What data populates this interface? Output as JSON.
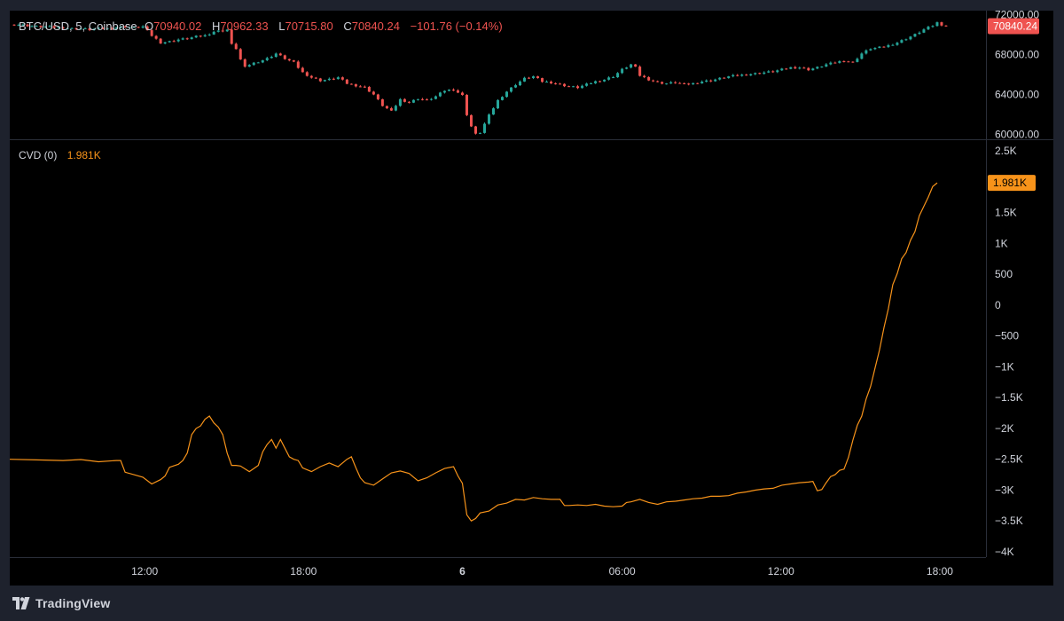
{
  "header": {
    "symbol": "BTC/USD, 5, Coinbase",
    "open_label": "O",
    "open": "70940.02",
    "high_label": "H",
    "high": "70962.33",
    "low_label": "L",
    "low": "70715.80",
    "close_label": "C",
    "close": "70840.24",
    "change": "−101.76 (−0.14%)"
  },
  "cvd_header": {
    "name": "CVD (0)",
    "value": "1.981K"
  },
  "footer": {
    "brand": "TradingView"
  },
  "colors": {
    "up": "#26a69a",
    "down": "#ef5350",
    "cvd": "#f7931a",
    "price_tag": "#ef5350",
    "cvd_tag": "#f7931a",
    "text": "#d1d4dc",
    "grid_sep": "#2a2e39"
  },
  "chart_data": [
    {
      "type": "candlestick",
      "title": "BTC/USD, 5, Coinbase",
      "price_axis_ticks": [
        "72000.00",
        "68000.00",
        "64000.00",
        "60000.00"
      ],
      "price_axis_values": [
        72000,
        68000,
        64000,
        60000
      ],
      "ylim": [
        59600,
        72400
      ],
      "last_price_label": "70840.24",
      "last_price": 70840.24,
      "close_series": [
        [
          0,
          71000
        ],
        [
          10,
          71000
        ],
        [
          20,
          70900
        ],
        [
          30,
          70800
        ],
        [
          40,
          70800
        ],
        [
          50,
          70700
        ],
        [
          60,
          70700
        ],
        [
          70,
          70600
        ],
        [
          80,
          70600
        ],
        [
          90,
          70500
        ],
        [
          100,
          70600
        ],
        [
          110,
          70600
        ],
        [
          120,
          70700
        ],
        [
          130,
          70800
        ],
        [
          140,
          70700
        ],
        [
          150,
          70800
        ],
        [
          160,
          69900
        ],
        [
          170,
          69200
        ],
        [
          180,
          69300
        ],
        [
          190,
          69500
        ],
        [
          200,
          69600
        ],
        [
          210,
          69800
        ],
        [
          220,
          69900
        ],
        [
          230,
          70300
        ],
        [
          240,
          70400
        ],
        [
          245,
          70500
        ],
        [
          250,
          69000
        ],
        [
          255,
          68600
        ],
        [
          260,
          67500
        ],
        [
          265,
          66700
        ],
        [
          270,
          67000
        ],
        [
          280,
          67300
        ],
        [
          290,
          67600
        ],
        [
          300,
          68100
        ],
        [
          310,
          67600
        ],
        [
          320,
          67200
        ],
        [
          330,
          66200
        ],
        [
          340,
          65700
        ],
        [
          350,
          65400
        ],
        [
          360,
          65500
        ],
        [
          370,
          65700
        ],
        [
          380,
          65100
        ],
        [
          390,
          64900
        ],
        [
          400,
          64700
        ],
        [
          410,
          64000
        ],
        [
          420,
          62900
        ],
        [
          430,
          62300
        ],
        [
          440,
          63500
        ],
        [
          450,
          63200
        ],
        [
          460,
          63600
        ],
        [
          470,
          63400
        ],
        [
          480,
          63800
        ],
        [
          490,
          64400
        ],
        [
          500,
          64500
        ],
        [
          510,
          63900
        ],
        [
          515,
          62000
        ],
        [
          520,
          60800
        ],
        [
          525,
          60000
        ],
        [
          530,
          60200
        ],
        [
          540,
          61900
        ],
        [
          550,
          63400
        ],
        [
          560,
          64300
        ],
        [
          570,
          65000
        ],
        [
          580,
          65600
        ],
        [
          590,
          65800
        ],
        [
          600,
          65300
        ],
        [
          610,
          65200
        ],
        [
          620,
          65000
        ],
        [
          630,
          64800
        ],
        [
          640,
          64700
        ],
        [
          650,
          65000
        ],
        [
          660,
          65300
        ],
        [
          670,
          65500
        ],
        [
          680,
          65800
        ],
        [
          690,
          66500
        ],
        [
          700,
          67000
        ],
        [
          705,
          66700
        ],
        [
          710,
          65900
        ],
        [
          720,
          65500
        ],
        [
          730,
          65200
        ],
        [
          740,
          65100
        ],
        [
          750,
          65200
        ],
        [
          760,
          65000
        ],
        [
          770,
          65100
        ],
        [
          780,
          65300
        ],
        [
          790,
          65400
        ],
        [
          800,
          65600
        ],
        [
          810,
          65800
        ],
        [
          820,
          65900
        ],
        [
          830,
          66000
        ],
        [
          840,
          66100
        ],
        [
          850,
          66200
        ],
        [
          860,
          66300
        ],
        [
          870,
          66500
        ],
        [
          880,
          66700
        ],
        [
          890,
          66700
        ],
        [
          900,
          66500
        ],
        [
          910,
          66700
        ],
        [
          920,
          67000
        ],
        [
          930,
          67200
        ],
        [
          940,
          67400
        ],
        [
          950,
          67200
        ],
        [
          960,
          68100
        ],
        [
          970,
          68600
        ],
        [
          980,
          68700
        ],
        [
          990,
          68900
        ],
        [
          1000,
          69200
        ],
        [
          1010,
          69600
        ],
        [
          1020,
          70000
        ],
        [
          1030,
          70500
        ],
        [
          1040,
          70900
        ],
        [
          1045,
          71200
        ],
        [
          1050,
          71000
        ],
        [
          1055,
          70840
        ]
      ]
    },
    {
      "type": "line",
      "title": "CVD (0)",
      "last_value_label": "1.981K",
      "last_value": 1981,
      "y_axis_ticks": [
        "2.5K",
        "1.5K",
        "1K",
        "500",
        "0",
        "−500",
        "−1K",
        "−1.5K",
        "−2K",
        "−2.5K",
        "−3K",
        "−3.5K",
        "−4K"
      ],
      "y_axis_values": [
        2500,
        1500,
        1000,
        500,
        0,
        -500,
        -1000,
        -1500,
        -2000,
        -2500,
        -3000,
        -3500,
        -4000
      ],
      "ylim": [
        -4000,
        2500
      ],
      "x_axis_ticks": [
        "12:00",
        "18:00",
        "6",
        "06:00",
        "12:00",
        "18:00"
      ],
      "x_axis_tick_positions": [
        152,
        331,
        510,
        690,
        869,
        1048
      ],
      "xlim": [
        0,
        1100
      ],
      "series": [
        {
          "values": [
            [
              0,
              -2500
            ],
            [
              30,
              -2510
            ],
            [
              60,
              -2520
            ],
            [
              80,
              -2505
            ],
            [
              100,
              -2540
            ],
            [
              120,
              -2520
            ],
            [
              125,
              -2520
            ],
            [
              130,
              -2710
            ],
            [
              140,
              -2750
            ],
            [
              150,
              -2790
            ],
            [
              160,
              -2900
            ],
            [
              170,
              -2830
            ],
            [
              175,
              -2770
            ],
            [
              180,
              -2630
            ],
            [
              190,
              -2580
            ],
            [
              195,
              -2520
            ],
            [
              200,
              -2400
            ],
            [
              205,
              -2100
            ],
            [
              210,
              -2000
            ],
            [
              215,
              -1960
            ],
            [
              220,
              -1850
            ],
            [
              225,
              -1800
            ],
            [
              230,
              -1910
            ],
            [
              235,
              -1980
            ],
            [
              240,
              -2100
            ],
            [
              245,
              -2400
            ],
            [
              250,
              -2600
            ],
            [
              255,
              -2600
            ],
            [
              260,
              -2610
            ],
            [
              270,
              -2700
            ],
            [
              280,
              -2600
            ],
            [
              285,
              -2380
            ],
            [
              290,
              -2260
            ],
            [
              295,
              -2180
            ],
            [
              300,
              -2320
            ],
            [
              305,
              -2180
            ],
            [
              310,
              -2320
            ],
            [
              315,
              -2460
            ],
            [
              320,
              -2500
            ],
            [
              325,
              -2520
            ],
            [
              330,
              -2640
            ],
            [
              340,
              -2700
            ],
            [
              350,
              -2620
            ],
            [
              360,
              -2560
            ],
            [
              370,
              -2620
            ],
            [
              380,
              -2500
            ],
            [
              385,
              -2460
            ],
            [
              390,
              -2640
            ],
            [
              395,
              -2800
            ],
            [
              400,
              -2880
            ],
            [
              410,
              -2920
            ],
            [
              420,
              -2820
            ],
            [
              430,
              -2720
            ],
            [
              440,
              -2690
            ],
            [
              450,
              -2730
            ],
            [
              460,
              -2850
            ],
            [
              470,
              -2800
            ],
            [
              480,
              -2720
            ],
            [
              490,
              -2650
            ],
            [
              500,
              -2620
            ],
            [
              505,
              -2770
            ],
            [
              510,
              -2890
            ],
            [
              515,
              -3400
            ],
            [
              520,
              -3500
            ],
            [
              525,
              -3460
            ],
            [
              530,
              -3370
            ],
            [
              540,
              -3340
            ],
            [
              550,
              -3240
            ],
            [
              560,
              -3210
            ],
            [
              570,
              -3150
            ],
            [
              580,
              -3160
            ],
            [
              590,
              -3120
            ],
            [
              600,
              -3140
            ],
            [
              610,
              -3150
            ],
            [
              620,
              -3150
            ],
            [
              625,
              -3250
            ],
            [
              630,
              -3250
            ],
            [
              640,
              -3240
            ],
            [
              650,
              -3250
            ],
            [
              660,
              -3230
            ],
            [
              670,
              -3260
            ],
            [
              680,
              -3270
            ],
            [
              690,
              -3260
            ],
            [
              695,
              -3200
            ],
            [
              700,
              -3190
            ],
            [
              710,
              -3150
            ],
            [
              720,
              -3200
            ],
            [
              730,
              -3230
            ],
            [
              740,
              -3190
            ],
            [
              750,
              -3180
            ],
            [
              760,
              -3160
            ],
            [
              770,
              -3140
            ],
            [
              780,
              -3130
            ],
            [
              790,
              -3100
            ],
            [
              800,
              -3100
            ],
            [
              810,
              -3090
            ],
            [
              820,
              -3050
            ],
            [
              830,
              -3030
            ],
            [
              840,
              -3000
            ],
            [
              850,
              -2980
            ],
            [
              860,
              -2970
            ],
            [
              870,
              -2920
            ],
            [
              880,
              -2900
            ],
            [
              890,
              -2880
            ],
            [
              900,
              -2870
            ],
            [
              905,
              -2860
            ],
            [
              910,
              -3010
            ],
            [
              915,
              -2990
            ],
            [
              920,
              -2880
            ],
            [
              925,
              -2780
            ],
            [
              930,
              -2750
            ],
            [
              935,
              -2680
            ],
            [
              940,
              -2660
            ],
            [
              945,
              -2470
            ],
            [
              950,
              -2190
            ],
            [
              955,
              -1950
            ],
            [
              960,
              -1800
            ],
            [
              965,
              -1520
            ],
            [
              970,
              -1320
            ],
            [
              975,
              -1020
            ],
            [
              980,
              -730
            ],
            [
              985,
              -370
            ],
            [
              990,
              -60
            ],
            [
              995,
              330
            ],
            [
              1000,
              510
            ],
            [
              1005,
              750
            ],
            [
              1010,
              850
            ],
            [
              1015,
              1050
            ],
            [
              1020,
              1190
            ],
            [
              1025,
              1450
            ],
            [
              1030,
              1600
            ],
            [
              1035,
              1750
            ],
            [
              1040,
              1920
            ],
            [
              1045,
              1981
            ]
          ]
        }
      ]
    }
  ]
}
